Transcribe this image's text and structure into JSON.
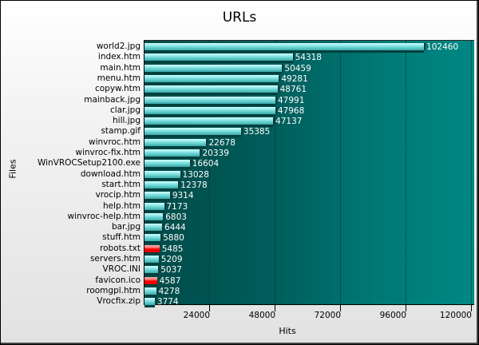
{
  "chart_data": {
    "type": "bar",
    "orientation": "horizontal",
    "title": "URLs",
    "xlabel": "Hits",
    "ylabel": "Files",
    "xlim": [
      0,
      121000
    ],
    "xticks": [
      24000,
      48000,
      72000,
      96000,
      120000
    ],
    "grid": true,
    "legend": null,
    "categories": [
      "world2.jpg",
      "index.htm",
      "main.htm",
      "menu.htm",
      "copyw.htm",
      "mainback.jpg",
      "clar.jpg",
      "hill.jpg",
      "stamp.gif",
      "winvroc.htm",
      "winvroc-fix.htm",
      "WinVROCSetup2100.exe",
      "download.htm",
      "start.htm",
      "vrocip.htm",
      "help.htm",
      "winvroc-help.htm",
      "bar.jpg",
      "stuff.htm",
      "robots.txt",
      "servers.htm",
      "VROC.INI",
      "favicon.ico",
      "roomgpl.htm",
      "Vrocfix.zip"
    ],
    "values": [
      102460,
      54318,
      50459,
      49281,
      48761,
      47991,
      47968,
      47137,
      35385,
      22678,
      20339,
      16604,
      13028,
      12378,
      9314,
      7173,
      6803,
      6444,
      5880,
      5485,
      5209,
      5037,
      4587,
      4278,
      3774
    ],
    "highlighted": [
      "robots.txt",
      "favicon.ico"
    ],
    "colors": {
      "bar": "#5cc8c8",
      "highlight": "#ff0000",
      "plot_bg_left": "#004a48",
      "plot_bg_right": "#008884"
    }
  },
  "labels": {
    "title": "URLs",
    "xlabel": "Hits",
    "ylabel": "Files",
    "ticks": [
      "24000",
      "48000",
      "72000",
      "96000",
      "120000"
    ]
  }
}
